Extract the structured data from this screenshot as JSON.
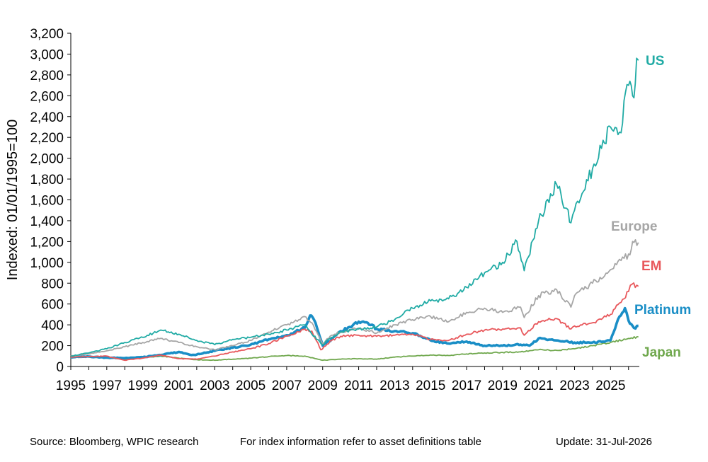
{
  "chart_data": {
    "type": "line",
    "title": "",
    "xlabel": "",
    "ylabel": "Indexed: 01/01/1995=100",
    "xlim": [
      1995,
      2026.6
    ],
    "ylim": [
      0,
      3200
    ],
    "x_ticks": [
      "1995",
      "1997",
      "1999",
      "2001",
      "2003",
      "2005",
      "2007",
      "2009",
      "2011",
      "2013",
      "2015",
      "2017",
      "2019",
      "2021",
      "2023",
      "2025"
    ],
    "y_ticks": [
      "0",
      "200",
      "400",
      "600",
      "800",
      "1,000",
      "1,200",
      "1,400",
      "1,600",
      "1,800",
      "2,000",
      "2,200",
      "2,400",
      "2,600",
      "2,800",
      "3,000",
      "3,200"
    ],
    "grid": false,
    "legend": "inline labels at right end of each series",
    "series": [
      {
        "name": "Japan",
        "color": "#70A84E",
        "width": 1.8,
        "points": [
          [
            1995,
            100
          ],
          [
            1996,
            95
          ],
          [
            1997,
            85
          ],
          [
            1998,
            70
          ],
          [
            1999,
            85
          ],
          [
            2000,
            100
          ],
          [
            2001,
            80
          ],
          [
            2002,
            65
          ],
          [
            2003,
            60
          ],
          [
            2004,
            70
          ],
          [
            2005,
            80
          ],
          [
            2006,
            95
          ],
          [
            2007,
            105
          ],
          [
            2008,
            100
          ],
          [
            2009,
            60
          ],
          [
            2010,
            70
          ],
          [
            2011,
            75
          ],
          [
            2012,
            70
          ],
          [
            2013,
            90
          ],
          [
            2014,
            100
          ],
          [
            2015,
            110
          ],
          [
            2016,
            105
          ],
          [
            2017,
            120
          ],
          [
            2018,
            130
          ],
          [
            2019,
            135
          ],
          [
            2020,
            140
          ],
          [
            2021,
            160
          ],
          [
            2022,
            155
          ],
          [
            2023,
            170
          ],
          [
            2024,
            200
          ],
          [
            2025,
            230
          ],
          [
            2026,
            270
          ],
          [
            2026.55,
            285
          ]
        ]
      },
      {
        "name": "Platinum",
        "color": "#1A8EC6",
        "width": 3.6,
        "points": [
          [
            1995,
            90
          ],
          [
            1996,
            95
          ],
          [
            1997,
            85
          ],
          [
            1998,
            80
          ],
          [
            1999,
            90
          ],
          [
            2000,
            110
          ],
          [
            2001,
            140
          ],
          [
            2001.7,
            110
          ],
          [
            2002,
            115
          ],
          [
            2003,
            150
          ],
          [
            2004,
            180
          ],
          [
            2005,
            210
          ],
          [
            2006,
            260
          ],
          [
            2007,
            300
          ],
          [
            2008,
            370
          ],
          [
            2008.3,
            490
          ],
          [
            2008.6,
            420
          ],
          [
            2009,
            200
          ],
          [
            2009.5,
            260
          ],
          [
            2010,
            340
          ],
          [
            2010.5,
            380
          ],
          [
            2011,
            430
          ],
          [
            2011.5,
            420
          ],
          [
            2012,
            360
          ],
          [
            2013,
            340
          ],
          [
            2014,
            320
          ],
          [
            2015,
            250
          ],
          [
            2016,
            220
          ],
          [
            2017,
            240
          ],
          [
            2018,
            200
          ],
          [
            2019,
            200
          ],
          [
            2020,
            210
          ],
          [
            2020.5,
            200
          ],
          [
            2021,
            270
          ],
          [
            2022,
            250
          ],
          [
            2023,
            230
          ],
          [
            2024,
            230
          ],
          [
            2025,
            250
          ],
          [
            2025.5,
            480
          ],
          [
            2025.8,
            560
          ],
          [
            2026,
            440
          ],
          [
            2026.3,
            370
          ],
          [
            2026.55,
            390
          ]
        ]
      },
      {
        "name": "EM",
        "color": "#E8585C",
        "width": 1.8,
        "points": [
          [
            1995,
            90
          ],
          [
            1996,
            95
          ],
          [
            1997,
            100
          ],
          [
            1998,
            60
          ],
          [
            1999,
            80
          ],
          [
            2000,
            110
          ],
          [
            2001,
            75
          ],
          [
            2002,
            70
          ],
          [
            2003,
            100
          ],
          [
            2004,
            140
          ],
          [
            2005,
            170
          ],
          [
            2006,
            220
          ],
          [
            2007,
            290
          ],
          [
            2008,
            360
          ],
          [
            2008.4,
            340
          ],
          [
            2008.9,
            160
          ],
          [
            2009.5,
            250
          ],
          [
            2010,
            290
          ],
          [
            2011,
            300
          ],
          [
            2012,
            290
          ],
          [
            2013,
            300
          ],
          [
            2014,
            310
          ],
          [
            2015,
            260
          ],
          [
            2016,
            250
          ],
          [
            2017,
            310
          ],
          [
            2018,
            350
          ],
          [
            2019,
            360
          ],
          [
            2020,
            370
          ],
          [
            2020.2,
            300
          ],
          [
            2021,
            430
          ],
          [
            2022,
            460
          ],
          [
            2022.8,
            360
          ],
          [
            2023,
            390
          ],
          [
            2024,
            420
          ],
          [
            2025,
            500
          ],
          [
            2026,
            720
          ],
          [
            2026.2,
            790
          ],
          [
            2026.55,
            770
          ]
        ]
      },
      {
        "name": "Europe",
        "color": "#A6A6A6",
        "width": 1.8,
        "points": [
          [
            1995,
            100
          ],
          [
            1996,
            120
          ],
          [
            1997,
            150
          ],
          [
            1998,
            190
          ],
          [
            1999,
            230
          ],
          [
            2000,
            270
          ],
          [
            2001,
            230
          ],
          [
            2002,
            190
          ],
          [
            2003,
            160
          ],
          [
            2004,
            200
          ],
          [
            2005,
            250
          ],
          [
            2006,
            330
          ],
          [
            2007,
            400
          ],
          [
            2008,
            480
          ],
          [
            2008.4,
            420
          ],
          [
            2009,
            220
          ],
          [
            2009.5,
            300
          ],
          [
            2010,
            330
          ],
          [
            2011,
            370
          ],
          [
            2012,
            320
          ],
          [
            2013,
            400
          ],
          [
            2014,
            450
          ],
          [
            2015,
            480
          ],
          [
            2016,
            430
          ],
          [
            2017,
            520
          ],
          [
            2018,
            560
          ],
          [
            2019,
            520
          ],
          [
            2020,
            570
          ],
          [
            2020.2,
            470
          ],
          [
            2021,
            680
          ],
          [
            2022,
            740
          ],
          [
            2022.8,
            570
          ],
          [
            2023,
            680
          ],
          [
            2024,
            800
          ],
          [
            2025,
            930
          ],
          [
            2026,
            1080
          ],
          [
            2026.3,
            1190
          ],
          [
            2026.55,
            1190
          ]
        ]
      },
      {
        "name": "US",
        "color": "#21ABA5",
        "width": 1.8,
        "points": [
          [
            1995,
            100
          ],
          [
            1996,
            130
          ],
          [
            1997,
            170
          ],
          [
            1998,
            230
          ],
          [
            1999,
            280
          ],
          [
            2000,
            350
          ],
          [
            2001,
            310
          ],
          [
            2002,
            250
          ],
          [
            2003,
            210
          ],
          [
            2004,
            260
          ],
          [
            2005,
            280
          ],
          [
            2006,
            310
          ],
          [
            2007,
            350
          ],
          [
            2008,
            400
          ],
          [
            2008.4,
            310
          ],
          [
            2009,
            210
          ],
          [
            2009.5,
            280
          ],
          [
            2010,
            330
          ],
          [
            2011,
            360
          ],
          [
            2012,
            380
          ],
          [
            2013,
            450
          ],
          [
            2014,
            560
          ],
          [
            2015,
            630
          ],
          [
            2016,
            650
          ],
          [
            2017,
            760
          ],
          [
            2018,
            900
          ],
          [
            2019,
            1000
          ],
          [
            2019.8,
            1200
          ],
          [
            2020.2,
            920
          ],
          [
            2021,
            1400
          ],
          [
            2022,
            1750
          ],
          [
            2022.8,
            1380
          ],
          [
            2023,
            1500
          ],
          [
            2024,
            1900
          ],
          [
            2025,
            2300
          ],
          [
            2025.5,
            2250
          ],
          [
            2026,
            2700
          ],
          [
            2026.3,
            2580
          ],
          [
            2026.45,
            2960
          ],
          [
            2026.55,
            2940
          ]
        ]
      }
    ],
    "series_labels": [
      {
        "text": "US",
        "series": "US"
      },
      {
        "text": "Europe",
        "series": "Europe"
      },
      {
        "text": "EM",
        "series": "EM"
      },
      {
        "text": "Platinum",
        "series": "Platinum"
      },
      {
        "text": "Japan",
        "series": "Japan"
      }
    ]
  },
  "footer": {
    "source": "Source: Bloomberg, WPIC research",
    "note": "For index information refer to asset definitions table",
    "update": "Update: 31-Jul-2026"
  }
}
